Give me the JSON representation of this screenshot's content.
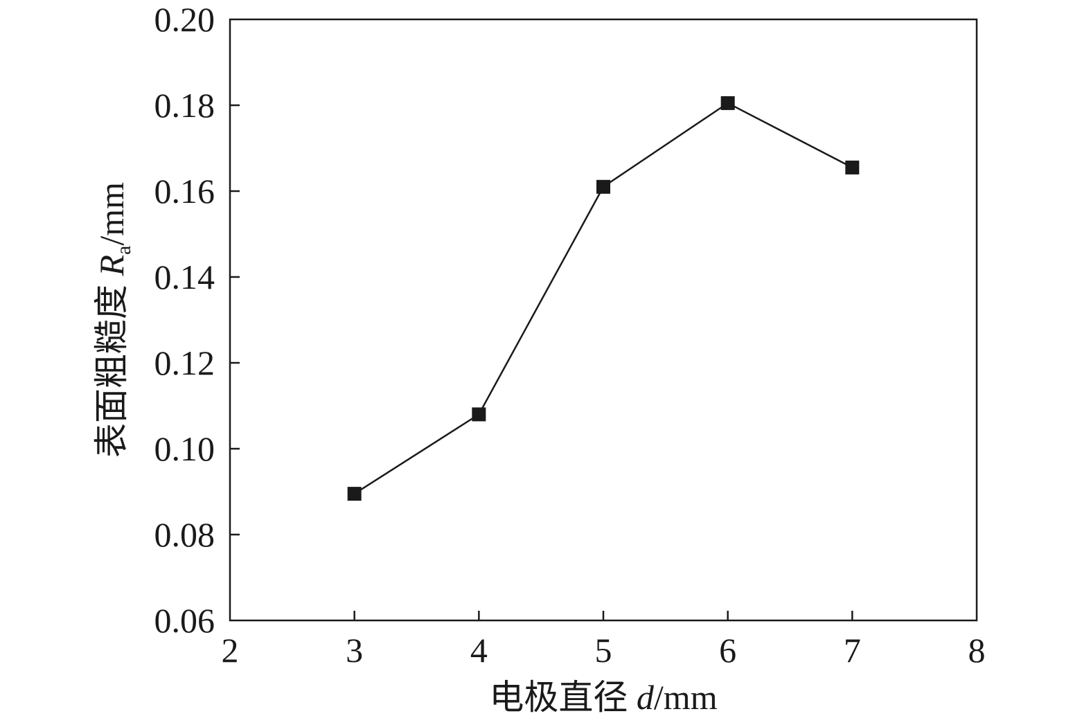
{
  "chart_data": {
    "type": "line",
    "title": "",
    "xlabel": {
      "prefix": "电极直径 ",
      "var": "d",
      "unit": "/mm"
    },
    "ylabel": {
      "prefix": "表面粗糙度 ",
      "var": "R",
      "sub": "a",
      "unit": "/mm"
    },
    "xlim": [
      2,
      8
    ],
    "ylim": [
      0.06,
      0.2
    ],
    "xticks": [
      2,
      3,
      4,
      5,
      6,
      7,
      8
    ],
    "xtick_labels": [
      "2",
      "3",
      "4",
      "5",
      "6",
      "7",
      "8"
    ],
    "yticks": [
      0.06,
      0.08,
      0.1,
      0.12,
      0.14,
      0.16,
      0.18,
      0.2
    ],
    "ytick_labels": [
      "0.06",
      "0.08",
      "0.10",
      "0.12",
      "0.14",
      "0.16",
      "0.18",
      "0.20"
    ],
    "grid": false,
    "series": [
      {
        "marker": "square",
        "color": "#1a1a1a",
        "x": [
          3,
          4,
          5,
          6,
          7
        ],
        "y": [
          0.0895,
          0.108,
          0.161,
          0.1805,
          0.1655
        ]
      }
    ]
  }
}
